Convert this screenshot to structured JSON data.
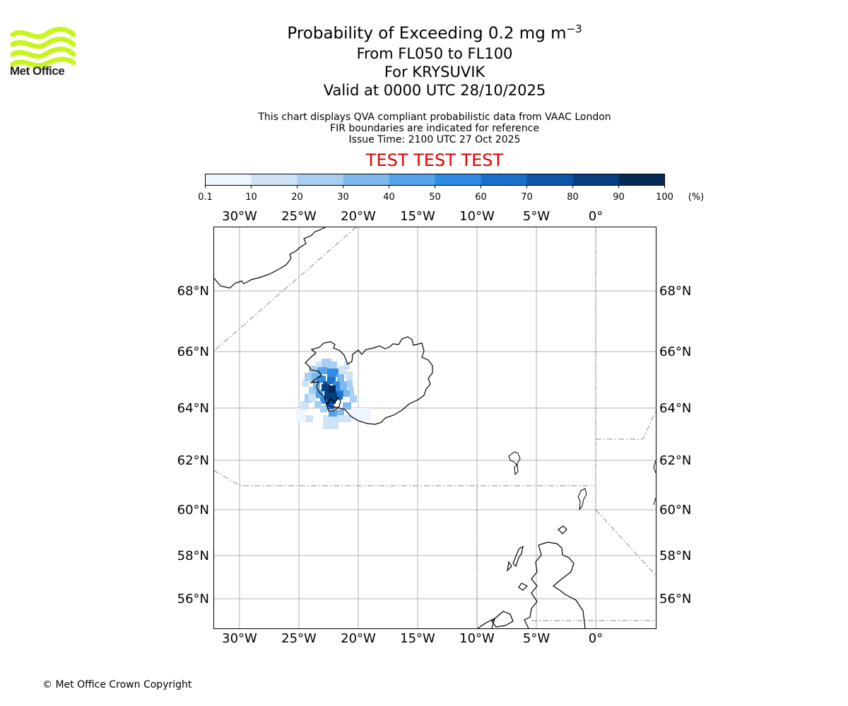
{
  "header": {
    "logo_text": "Met Office",
    "title_line1": "Probability of Exceeding 0.2 mg m",
    "title_superscript": "−3",
    "title_line2": "From FL050 to FL100",
    "title_line3": "For KRYSUVIK",
    "title_line4": "Valid at 0000 UTC 28/10/2025"
  },
  "notes": {
    "line1": "This chart displays QVA compliant probabilistic data from VAAC London",
    "line2": "FIR boundaries are indicated for reference",
    "line3": "Issue Time: 2100 UTC 27 Oct 2025"
  },
  "banner": "TEST TEST TEST",
  "colorbar": {
    "ticks": [
      "0.1",
      "10",
      "20",
      "30",
      "40",
      "50",
      "60",
      "70",
      "80",
      "90",
      "100"
    ],
    "unit": "(%)",
    "colors": [
      "#eef6ff",
      "#cfe3f8",
      "#a8cff2",
      "#7fb9ee",
      "#55a3ec",
      "#2f8ce5",
      "#1a6fcb",
      "#0c55a8",
      "#063f80",
      "#042a55"
    ]
  },
  "map": {
    "lon_labels": [
      "30°W",
      "25°W",
      "20°W",
      "15°W",
      "10°W",
      "5°W",
      "0°"
    ],
    "lat_labels": [
      "68°N",
      "66°N",
      "64°N",
      "62°N",
      "60°N",
      "58°N",
      "56°N"
    ]
  },
  "footer": {
    "copyright": "© Met Office Crown Copyright"
  }
}
